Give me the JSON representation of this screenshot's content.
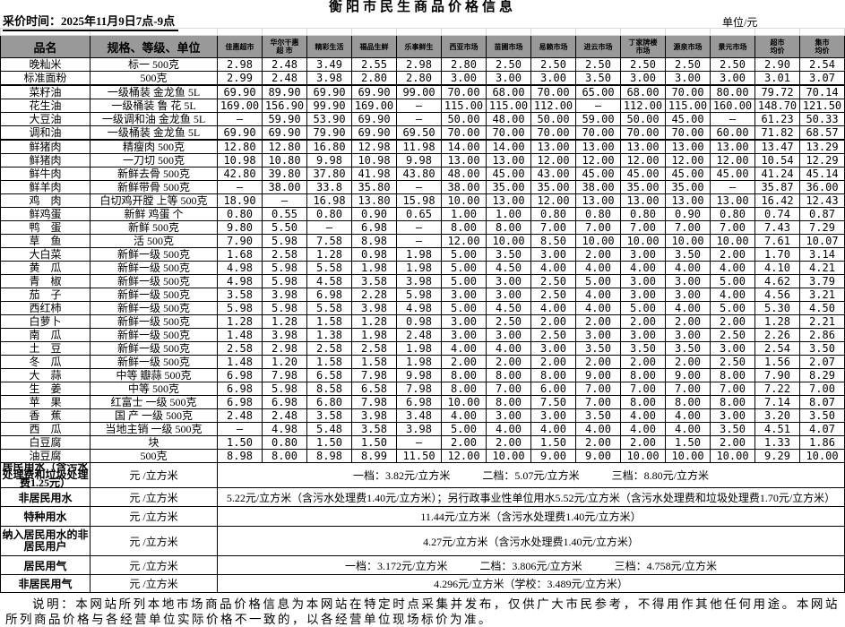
{
  "title": "衡阳市民生商品价格信息",
  "collect_time": "采价时间：2025年11月9日7点-9点",
  "unit_label": "单位/元",
  "table": {
    "col1_header": "品名",
    "col2_header": "规格、等级、单位",
    "market_headers": [
      "佳惠超市",
      "华尔干惠\n超 市",
      "精彩生活",
      "福品生鲜",
      "乐事鲜生",
      "西亚市场",
      "苗圃市场",
      "易赖市场",
      "进云市场",
      "丁家牌楼\n市场",
      "源泉市场",
      "景元市场",
      "超市\n均价",
      "集市\n均价"
    ],
    "rows": [
      {
        "name": "晚籼米",
        "spec": "标一  500克",
        "prices": [
          "2.98",
          "2.48",
          "3.49",
          "2.55",
          "2.98",
          "2.80",
          "2.50",
          "2.50",
          "2.50",
          "2.50",
          "2.50",
          "2.50",
          "2.90",
          "2.54"
        ]
      },
      {
        "name": "标准面粉",
        "spec": "500克",
        "prices": [
          "2.99",
          "2.48",
          "3.98",
          "2.80",
          "2.80",
          "3.00",
          "3.00",
          "3.00",
          "3.50",
          "3.00",
          "3.00",
          "3.00",
          "3.01",
          "3.07"
        ]
      },
      {
        "name": "菜籽油",
        "spec": "一级桶装  金龙鱼  5L",
        "prices": [
          "69.90",
          "89.90",
          "69.90",
          "69.90",
          "99.00",
          "70.00",
          "68.00",
          "70.00",
          "65.00",
          "68.00",
          "70.00",
          "80.00",
          "79.72",
          "70.14"
        ]
      },
      {
        "name": "花生油",
        "spec": "一级桶装  鲁  花  5L",
        "prices": [
          "169.00",
          "156.90",
          "99.90",
          "169.00",
          "—",
          "115.00",
          "115.00",
          "112.00",
          "–",
          "112.00",
          "115.00",
          "160.00",
          "148.70",
          "121.50"
        ]
      },
      {
        "name": "大豆油",
        "spec": "一级调和油 金龙鱼 5L",
        "prices": [
          "–",
          "59.90",
          "53.90",
          "69.90",
          "—",
          "50.00",
          "48.00",
          "50.00",
          "59.00",
          "50.00",
          "45.00",
          "–",
          "61.23",
          "50.33"
        ]
      },
      {
        "name": "调和油",
        "spec": "一级桶装  金龙鱼  5L",
        "prices": [
          "69.90",
          "69.90",
          "79.90",
          "69.90",
          "69.50",
          "70.00",
          "70.00",
          "70.00",
          "70.00",
          "70.00",
          "70.00",
          "60.00",
          "71.82",
          "68.57"
        ]
      },
      {
        "name": "鲜猪肉",
        "spec": "精瘦肉  500克",
        "prices": [
          "12.80",
          "12.80",
          "16.80",
          "12.98",
          "11.98",
          "14.00",
          "14.00",
          "13.00",
          "13.00",
          "13.00",
          "13.00",
          "13.00",
          "13.47",
          "13.29"
        ]
      },
      {
        "name": "鲜猪肉",
        "spec": "一刀切  500克",
        "prices": [
          "10.98",
          "10.80",
          "9.98",
          "10.98",
          "9.98",
          "13.00",
          "13.00",
          "12.00",
          "12.00",
          "12.00",
          "12.00",
          "12.00",
          "10.54",
          "12.29"
        ]
      },
      {
        "name": "鲜牛肉",
        "spec": "新鲜去骨 500克",
        "prices": [
          "42.80",
          "39.80",
          "37.80",
          "41.98",
          "43.80",
          "48.00",
          "45.00",
          "43.00",
          "45.00",
          "45.00",
          "45.00",
          "45.00",
          "41.24",
          "45.14"
        ]
      },
      {
        "name": "鲜羊肉",
        "spec": "新鲜带骨 500克",
        "prices": [
          "–",
          "38.00",
          "33.8",
          "35.80",
          "—",
          "38.00",
          "35.00",
          "35.00",
          "38.00",
          "35.00",
          "35.00",
          "–",
          "35.87",
          "36.00"
        ]
      },
      {
        "name": "鸡　肉",
        "spec": "白切鸡开膛 上等 500克",
        "prices": [
          "18.90",
          "–",
          "16.98",
          "13.80",
          "15.98",
          "10.00",
          "13.00",
          "12.00",
          "13.00",
          "13.00",
          "13.00",
          "13.00",
          "16.42",
          "12.43"
        ]
      },
      {
        "name": "鲜鸡蛋",
        "spec": "新鲜 鸡蛋  个",
        "prices": [
          "0.80",
          "0.55",
          "0.80",
          "0.90",
          "0.65",
          "1.00",
          "1.00",
          "0.80",
          "0.80",
          "0.80",
          "0.90",
          "0.80",
          "0.74",
          "0.87"
        ]
      },
      {
        "name": "鸭　蛋",
        "spec": "新鲜  500克",
        "prices": [
          "9.80",
          "5.50",
          "–",
          "6.98",
          "—",
          "8.00",
          "8.00",
          "7.00",
          "7.00",
          "7.00",
          "7.00",
          "7.00",
          "7.43",
          "7.29"
        ]
      },
      {
        "name": "草　鱼",
        "spec": "活  500克",
        "prices": [
          "7.90",
          "5.98",
          "7.58",
          "8.98",
          "—",
          "12.00",
          "10.00",
          "8.50",
          "10.00",
          "10.00",
          "10.00",
          "10.00",
          "7.61",
          "10.07"
        ]
      },
      {
        "name": "大白菜",
        "spec": "新鲜一级 500克",
        "prices": [
          "1.68",
          "2.58",
          "1.28",
          "0.98",
          "1.98",
          "5.00",
          "3.50",
          "3.00",
          "2.00",
          "3.00",
          "3.50",
          "2.00",
          "1.70",
          "3.14"
        ]
      },
      {
        "name": "黄　瓜",
        "spec": "新鲜一级 500克",
        "prices": [
          "4.98",
          "5.98",
          "5.58",
          "1.98",
          "1.98",
          "5.00",
          "4.50",
          "4.00",
          "4.00",
          "4.00",
          "4.00",
          "4.00",
          "4.10",
          "4.21"
        ]
      },
      {
        "name": "青　椒",
        "spec": "新鲜一级 500克",
        "prices": [
          "4.98",
          "5.98",
          "4.58",
          "3.58",
          "3.98",
          "5.00",
          "3.00",
          "2.50",
          "5.00",
          "3.00",
          "3.00",
          "5.00",
          "4.62",
          "3.79"
        ]
      },
      {
        "name": "茄　子",
        "spec": "新鲜一级 500克",
        "prices": [
          "3.58",
          "3.98",
          "6.98",
          "2.28",
          "5.98",
          "3.00",
          "3.00",
          "2.50",
          "4.00",
          "3.00",
          "3.00",
          "4.00",
          "4.56",
          "3.21"
        ]
      },
      {
        "name": "西红柿",
        "spec": "新鲜一级 500克",
        "prices": [
          "5.98",
          "5.98",
          "5.58",
          "3.98",
          "4.98",
          "5.00",
          "4.50",
          "4.00",
          "4.00",
          "5.00",
          "4.00",
          "5.00",
          "5.30",
          "4.50"
        ]
      },
      {
        "name": "白萝卜",
        "spec": "新鲜一级 500克",
        "prices": [
          "1.28",
          "1.28",
          "1.58",
          "1.28",
          "0.98",
          "3.00",
          "2.50",
          "2.00",
          "2.00",
          "2.00",
          "2.00",
          "2.00",
          "1.28",
          "2.21"
        ]
      },
      {
        "name": "南　瓜",
        "spec": "新鲜一级 500克",
        "prices": [
          "1.48",
          "3.98",
          "1.38",
          "1.98",
          "2.48",
          "3.00",
          "3.00",
          "2.50",
          "3.00",
          "3.00",
          "3.00",
          "2.50",
          "2.26",
          "2.86"
        ]
      },
      {
        "name": "土　豆",
        "spec": "新鲜一级 500克",
        "prices": [
          "2.58",
          "2.98",
          "2.58",
          "2.58",
          "1.98",
          "4.00",
          "4.00",
          "3.00",
          "3.50",
          "3.50",
          "3.50",
          "3.00",
          "2.54",
          "3.50"
        ]
      },
      {
        "name": "冬　瓜",
        "spec": "新鲜一级 500克",
        "prices": [
          "1.48",
          "1.20",
          "1.58",
          "1.58",
          "1.98",
          "2.00",
          "2.00",
          "2.00",
          "2.00",
          "2.00",
          "2.00",
          "2.50",
          "1.56",
          "2.07"
        ]
      },
      {
        "name": "大　蒜",
        "spec": "中等 瓣蒜  500克",
        "prices": [
          "6.98",
          "7.98",
          "6.58",
          "7.98",
          "9.98",
          "8.00",
          "8.00",
          "8.00",
          "9.00",
          "8.00",
          "9.00",
          "8.00",
          "7.90",
          "8.29"
        ]
      },
      {
        "name": "生　姜",
        "spec": "中等 500克",
        "prices": [
          "6.98",
          "5.98",
          "8.58",
          "6.58",
          "7.98",
          "8.00",
          "7.00",
          "6.00",
          "7.00",
          "7.00",
          "7.00",
          "7.00",
          "7.22",
          "7.00"
        ]
      },
      {
        "name": "苹　果",
        "spec": "红富士  一级  500克",
        "prices": [
          "6.98",
          "6.98",
          "6.80",
          "7.98",
          "6.98",
          "10.00",
          "8.00",
          "7.50",
          "7.00",
          "8.00",
          "8.00",
          "8.00",
          "7.14",
          "8.07"
        ]
      },
      {
        "name": "香　蕉",
        "spec": "国 产  一级  500克",
        "prices": [
          "2.48",
          "2.48",
          "3.58",
          "3.98",
          "3.48",
          "4.00",
          "3.00",
          "3.00",
          "3.50",
          "4.00",
          "4.00",
          "3.00",
          "3.20",
          "3.50"
        ]
      },
      {
        "name": "西　瓜",
        "spec": "当地主销 一级  500克",
        "prices": [
          "–",
          "4.98",
          "5.48",
          "3.58",
          "3.98",
          "5.00",
          "4.00",
          "4.00",
          "4.00",
          "4.00",
          "4.00",
          "3.50",
          "4.51",
          "4.07"
        ]
      },
      {
        "name": "白豆腐",
        "spec": "块",
        "prices": [
          "1.50",
          "0.80",
          "1.50",
          "1.50",
          "—",
          "2.00",
          "2.00",
          "1.50",
          "2.00",
          "2.00",
          "1.50",
          "2.00",
          "1.33",
          "1.86"
        ]
      },
      {
        "name": "油豆腐",
        "spec": "500克",
        "prices": [
          "8.98",
          "8.00",
          "8.98",
          "8.99",
          "11.50",
          "12.00",
          "10.00",
          "9.00",
          "9.00",
          "10.00",
          "10.00",
          "10.00",
          "9.29",
          "10.00"
        ]
      }
    ]
  },
  "utilities": [
    {
      "name": "居民用水（含污水处理费和垃圾处理费1.25元）",
      "unit": "元 /立方米",
      "value": "一档：3.82元/立方米　　　二档：5.07元/立方米　　　三档：8.80元/立方米"
    },
    {
      "name": "非居民用水",
      "unit": "元 /立方米",
      "value": "5.22元/立方米（含污水处理费1.40元/立方米）；另行政事业性单位用水5.52元/立方米（含污水处理费和垃圾处理费1.70元/立方米）"
    },
    {
      "name": "特种用水",
      "unit": "元 /立方米",
      "value": "11.44元/立方米（含污水处理费1.40元/立方米）"
    },
    {
      "name": "纳入居民用水的非居民用户",
      "unit": "元 /立方米",
      "value": "4.27元/立方米（含污水处理费1.40元/立方米）"
    },
    {
      "name": "居民用气",
      "unit": "元 /立方米",
      "value": "一档：3.172元/立方米　　　二档：3.806元/立方米　　　三档：4.758元/立方米"
    },
    {
      "name": "非居民用气",
      "unit": "元 /立方米",
      "value": "4.296元/立方米（学校：3.489元/立方米）"
    }
  ],
  "note": "说明：本网站所列本地市场商品价格信息为本网站在特定时点采集并发布，仅供广大市民参考，不得用作其他任何用途。本网站所列商品价格与各经营单位实际价格不一致的，以各经营单位现场标价为准。"
}
